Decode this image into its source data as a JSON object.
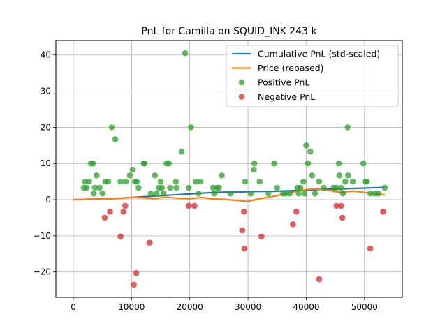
{
  "chart_data": {
    "type": "scatter",
    "title": "PnL for Camilla on SQUID_INK 243 k",
    "xlabel": "",
    "ylabel": "",
    "xlim": [
      -3000,
      56500
    ],
    "ylim": [
      -27,
      44
    ],
    "x_ticks": [
      0,
      10000,
      20000,
      30000,
      40000,
      50000
    ],
    "x_tick_labels": [
      "0",
      "10000",
      "20000",
      "30000",
      "40000",
      "50000"
    ],
    "y_ticks": [
      -20,
      -10,
      0,
      10,
      20,
      30,
      40
    ],
    "y_tick_labels": [
      "−20",
      "−10",
      "0",
      "10",
      "20",
      "30",
      "40"
    ],
    "grid": true,
    "legend_position": "top-right",
    "colors": {
      "cumulative": "#1f77b4",
      "price": "#ff7f0e",
      "positive": "#2ca02c",
      "negative": "#d62728"
    },
    "series": [
      {
        "name": "Cumulative PnL (std-scaled)",
        "kind": "line",
        "x": [
          0,
          2000,
          4000,
          6000,
          8000,
          10000,
          12000,
          14000,
          16000,
          18000,
          20000,
          22000,
          24000,
          26000,
          28000,
          30000,
          32000,
          34000,
          36000,
          38000,
          40000,
          42000,
          44000,
          46000,
          48000,
          50000,
          52000,
          53500
        ],
        "y": [
          0,
          0.1,
          0.2,
          0.3,
          0.4,
          0.6,
          0.8,
          1.0,
          1.2,
          1.4,
          1.6,
          1.8,
          2.0,
          2.1,
          2.1,
          2.2,
          2.3,
          2.3,
          2.4,
          2.5,
          2.6,
          2.8,
          2.9,
          3.0,
          3.1,
          3.2,
          3.3,
          3.4
        ]
      },
      {
        "name": "Price (rebased)",
        "kind": "line",
        "x": [
          0,
          2000,
          4000,
          6000,
          8000,
          10000,
          12000,
          14000,
          16000,
          18000,
          20000,
          22000,
          24000,
          26000,
          28000,
          30000,
          32000,
          34000,
          36000,
          38000,
          40000,
          42000,
          44000,
          46000,
          48000,
          50000,
          52000,
          53500
        ],
        "y": [
          0,
          0.1,
          0.3,
          0.2,
          0.4,
          0.6,
          0.5,
          0.3,
          0.7,
          0.4,
          0.3,
          0.6,
          0.2,
          0.1,
          -0.2,
          -0.5,
          0.3,
          0.8,
          1.5,
          2.2,
          2.8,
          3.0,
          2.5,
          2.0,
          2.4,
          2.0,
          1.6,
          1.3
        ]
      },
      {
        "name": "Positive PnL",
        "kind": "scatter",
        "points": [
          [
            1800,
            3.3
          ],
          [
            2000,
            5
          ],
          [
            2300,
            3.3
          ],
          [
            2700,
            5
          ],
          [
            3000,
            10
          ],
          [
            3400,
            10
          ],
          [
            3500,
            1.7
          ],
          [
            3700,
            3.3
          ],
          [
            4000,
            6.7
          ],
          [
            4500,
            3.3
          ],
          [
            5000,
            1.7
          ],
          [
            5500,
            5
          ],
          [
            6000,
            5
          ],
          [
            6600,
            20
          ],
          [
            7200,
            16.7
          ],
          [
            8100,
            5
          ],
          [
            9000,
            5
          ],
          [
            9700,
            6.7
          ],
          [
            10200,
            8.3
          ],
          [
            10600,
            5
          ],
          [
            10900,
            5
          ],
          [
            11200,
            3.3
          ],
          [
            12100,
            10
          ],
          [
            12200,
            10
          ],
          [
            13300,
            1.7
          ],
          [
            14000,
            6.7
          ],
          [
            14300,
            1.7
          ],
          [
            14700,
            3.3
          ],
          [
            15000,
            5
          ],
          [
            15200,
            3.3
          ],
          [
            15500,
            1.7
          ],
          [
            16000,
            10
          ],
          [
            16400,
            10
          ],
          [
            16600,
            3.3
          ],
          [
            17600,
            5
          ],
          [
            17700,
            3.3
          ],
          [
            18600,
            13.3
          ],
          [
            19200,
            40.5
          ],
          [
            19800,
            3.3
          ],
          [
            20200,
            20
          ],
          [
            21000,
            5
          ],
          [
            21500,
            1.7
          ],
          [
            21800,
            5
          ],
          [
            24000,
            3.3
          ],
          [
            24200,
            1.7
          ],
          [
            24700,
            3.3
          ],
          [
            25000,
            3.3
          ],
          [
            25500,
            6.7
          ],
          [
            27000,
            1.7
          ],
          [
            29500,
            5
          ],
          [
            30500,
            1.7
          ],
          [
            31000,
            8.3
          ],
          [
            31100,
            10
          ],
          [
            32000,
            5
          ],
          [
            33500,
            1.7
          ],
          [
            34500,
            10
          ],
          [
            35000,
            3.3
          ],
          [
            36000,
            1.7
          ],
          [
            36500,
            1.7
          ],
          [
            37200,
            1.7
          ],
          [
            38500,
            3.3
          ],
          [
            38700,
            1.7
          ],
          [
            39000,
            3.3
          ],
          [
            39500,
            5
          ],
          [
            39700,
            1.7
          ],
          [
            40000,
            15
          ],
          [
            40300,
            10
          ],
          [
            40700,
            13.3
          ],
          [
            41000,
            6.7
          ],
          [
            41500,
            1.7
          ],
          [
            42200,
            5
          ],
          [
            43000,
            3.3
          ],
          [
            44700,
            3.3
          ],
          [
            45200,
            3.3
          ],
          [
            45600,
            10
          ],
          [
            45700,
            6.7
          ],
          [
            46000,
            3.3
          ],
          [
            46300,
            1.7
          ],
          [
            46700,
            5
          ],
          [
            47100,
            20
          ],
          [
            47200,
            6.7
          ],
          [
            48000,
            5
          ],
          [
            49800,
            10
          ],
          [
            50200,
            5
          ],
          [
            50400,
            5
          ],
          [
            51000,
            1.7
          ],
          [
            51800,
            1.7
          ],
          [
            52400,
            1.7
          ],
          [
            53500,
            3.3
          ]
        ]
      },
      {
        "name": "Negative PnL",
        "kind": "scatter",
        "points": [
          [
            5400,
            -5
          ],
          [
            6300,
            -3.3
          ],
          [
            8100,
            -10.2
          ],
          [
            8600,
            -3.3
          ],
          [
            8900,
            -1.7
          ],
          [
            10400,
            -23.5
          ],
          [
            10800,
            -20.3
          ],
          [
            13100,
            -11.9
          ],
          [
            19800,
            -1.7
          ],
          [
            20800,
            -1.7
          ],
          [
            29000,
            -8.5
          ],
          [
            29300,
            -3.3
          ],
          [
            29400,
            -13.5
          ],
          [
            32300,
            -10.2
          ],
          [
            37700,
            -6.8
          ],
          [
            38300,
            -3.3
          ],
          [
            42200,
            -22
          ],
          [
            45200,
            -1.7
          ],
          [
            46000,
            -1.7
          ],
          [
            46200,
            -5
          ],
          [
            51000,
            -13.5
          ],
          [
            53200,
            -3.3
          ]
        ]
      }
    ]
  }
}
